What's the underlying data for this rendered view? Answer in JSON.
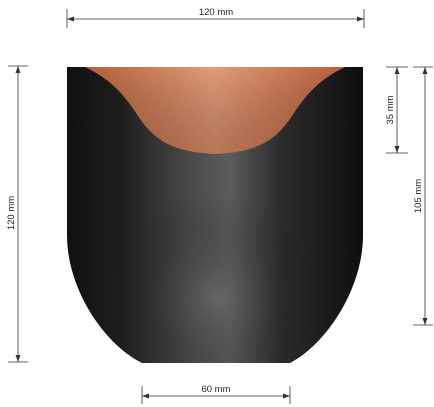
{
  "dimensions": {
    "top_width": "120 mm",
    "bottom_width": "60 mm",
    "left_height": "120 mm",
    "right_upper": "35 mm",
    "right_total": "105 mm"
  },
  "colors": {
    "body_dark": "#151515",
    "body_mid": "#5a5a5a",
    "top_copper": "#c8714a",
    "top_copper_light": "#e09a74",
    "dimension_line": "#333333"
  }
}
